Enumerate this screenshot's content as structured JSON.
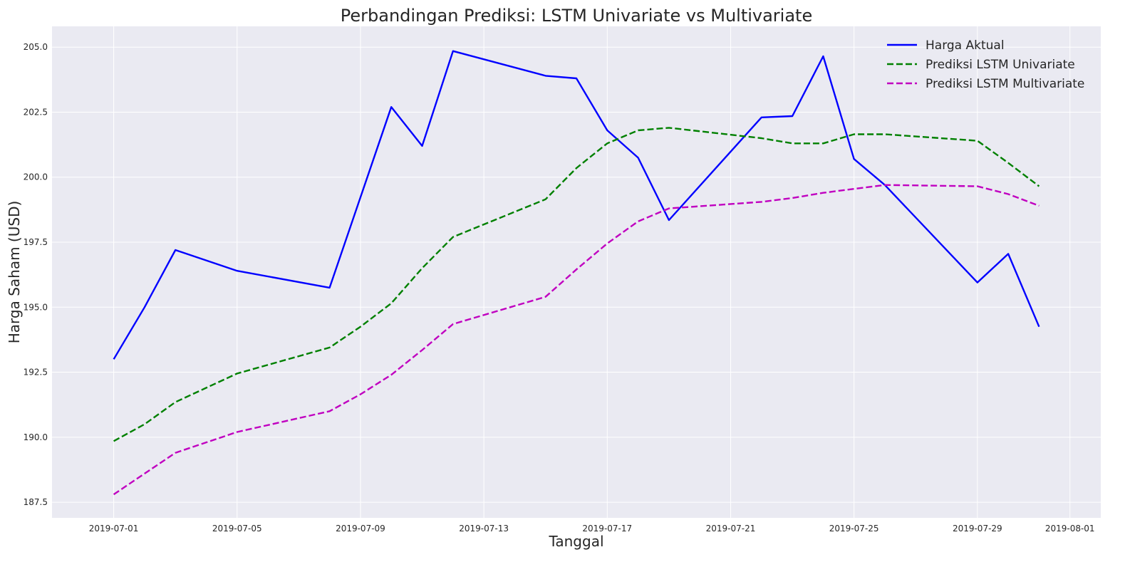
{
  "chart_data": {
    "type": "line",
    "title": "Perbandingan Prediksi: LSTM Univariate vs Multivariate",
    "xlabel": "Tanggal",
    "ylabel": "Harga Saham (USD)",
    "xlim": [
      "2019-06-29",
      "2019-08-02"
    ],
    "ylim": [
      186.9,
      205.8
    ],
    "grid": true,
    "legend_position": "top-right",
    "x_ticks": [
      "2019-07-01",
      "2019-07-05",
      "2019-07-09",
      "2019-07-13",
      "2019-07-17",
      "2019-07-21",
      "2019-07-25",
      "2019-07-29",
      "2019-08-01"
    ],
    "y_ticks": [
      "187.5",
      "190.0",
      "192.5",
      "195.0",
      "197.5",
      "200.0",
      "202.5",
      "205.0"
    ],
    "series": [
      {
        "name": "Harga Aktual",
        "color": "#0000ff",
        "dashed": false,
        "x": [
          "2019-07-01",
          "2019-07-02",
          "2019-07-03",
          "2019-07-05",
          "2019-07-08",
          "2019-07-10",
          "2019-07-11",
          "2019-07-12",
          "2019-07-15",
          "2019-07-16",
          "2019-07-17",
          "2019-07-18",
          "2019-07-19",
          "2019-07-22",
          "2019-07-23",
          "2019-07-24",
          "2019-07-25",
          "2019-07-26",
          "2019-07-29",
          "2019-07-30",
          "2019-07-31"
        ],
        "y": [
          193.0,
          195.0,
          197.2,
          196.4,
          195.75,
          202.7,
          201.2,
          204.85,
          203.9,
          203.8,
          201.8,
          200.75,
          198.35,
          202.3,
          202.35,
          204.65,
          200.7,
          199.7,
          195.95,
          197.05,
          194.25
        ]
      },
      {
        "name": "Prediksi LSTM Univariate",
        "color": "#008000",
        "dashed": true,
        "x": [
          "2019-07-01",
          "2019-07-02",
          "2019-07-03",
          "2019-07-05",
          "2019-07-08",
          "2019-07-09",
          "2019-07-10",
          "2019-07-11",
          "2019-07-12",
          "2019-07-15",
          "2019-07-16",
          "2019-07-17",
          "2019-07-18",
          "2019-07-19",
          "2019-07-22",
          "2019-07-23",
          "2019-07-24",
          "2019-07-25",
          "2019-07-26",
          "2019-07-29",
          "2019-07-30",
          "2019-07-31"
        ],
        "y": [
          189.85,
          190.5,
          191.35,
          192.45,
          193.45,
          194.25,
          195.15,
          196.5,
          197.7,
          199.15,
          200.35,
          201.3,
          201.8,
          201.9,
          201.5,
          201.3,
          201.3,
          201.65,
          201.65,
          201.4,
          200.55,
          199.65
        ]
      },
      {
        "name": "Prediksi LSTM Multivariate",
        "color": "#c000c0",
        "dashed": true,
        "x": [
          "2019-07-01",
          "2019-07-02",
          "2019-07-03",
          "2019-07-05",
          "2019-07-08",
          "2019-07-09",
          "2019-07-10",
          "2019-07-11",
          "2019-07-12",
          "2019-07-15",
          "2019-07-16",
          "2019-07-17",
          "2019-07-18",
          "2019-07-19",
          "2019-07-22",
          "2019-07-23",
          "2019-07-24",
          "2019-07-25",
          "2019-07-26",
          "2019-07-29",
          "2019-07-30",
          "2019-07-31"
        ],
        "y": [
          187.8,
          188.6,
          189.4,
          190.2,
          191.0,
          191.65,
          192.4,
          193.35,
          194.35,
          195.4,
          196.45,
          197.45,
          198.3,
          198.8,
          199.05,
          199.2,
          199.4,
          199.55,
          199.7,
          199.65,
          199.35,
          198.9
        ]
      }
    ]
  }
}
